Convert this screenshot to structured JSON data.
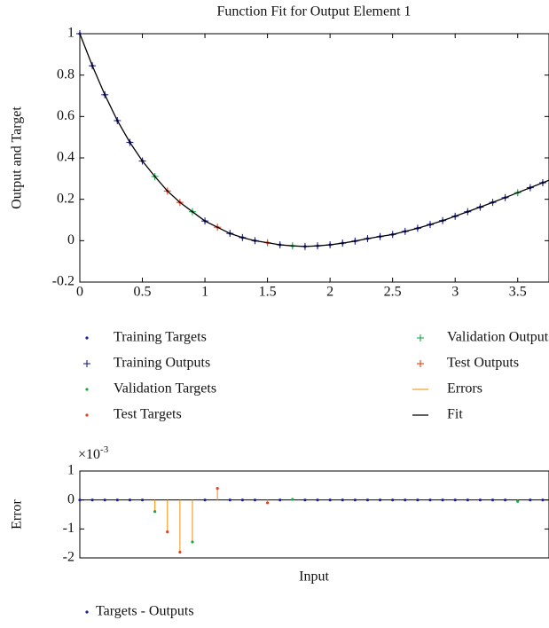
{
  "chart_data": [
    {
      "type": "scatter-fit",
      "title": "Function Fit for Output Element 1",
      "ylabel": "Output and Target",
      "xlim": [
        0,
        3.75
      ],
      "ylim": [
        -0.2,
        1
      ],
      "xticks": [
        0,
        0.5,
        1,
        1.5,
        2,
        2.5,
        3,
        3.5
      ],
      "yticks": [
        -0.2,
        0,
        0.2,
        0.4,
        0.6,
        0.8,
        1
      ],
      "series": [
        {
          "name": "Training Targets",
          "color": "#1f1f8f",
          "marker": "dot",
          "x": [
            0,
            0.1,
            0.2,
            0.3,
            0.4,
            0.5,
            1.0,
            1.2,
            1.3,
            1.4,
            1.6,
            1.8,
            1.9,
            2.0,
            2.1,
            2.2,
            2.3,
            2.4,
            2.5,
            2.6,
            2.7,
            2.8,
            2.9,
            3.0,
            3.1,
            3.2,
            3.3,
            3.4,
            3.6,
            3.7
          ],
          "values": [
            1,
            0.845,
            0.705,
            0.58,
            0.475,
            0.385,
            0.095,
            0.035,
            0.015,
            0,
            -0.02,
            -0.028,
            -0.025,
            -0.02,
            -0.012,
            -0.002,
            0.01,
            0.02,
            0.03,
            0.045,
            0.06,
            0.078,
            0.097,
            0.118,
            0.14,
            0.162,
            0.185,
            0.208,
            0.256,
            0.28
          ]
        },
        {
          "name": "Training Outputs",
          "color": "#1f1f8f",
          "marker": "plus",
          "x": [
            0,
            0.1,
            0.2,
            0.3,
            0.4,
            0.5,
            1.0,
            1.2,
            1.3,
            1.4,
            1.6,
            1.8,
            1.9,
            2.0,
            2.1,
            2.2,
            2.3,
            2.4,
            2.5,
            2.6,
            2.7,
            2.8,
            2.9,
            3.0,
            3.1,
            3.2,
            3.3,
            3.4,
            3.6,
            3.7
          ],
          "values": [
            1,
            0.845,
            0.705,
            0.58,
            0.475,
            0.385,
            0.095,
            0.035,
            0.015,
            0,
            -0.02,
            -0.028,
            -0.025,
            -0.02,
            -0.012,
            -0.002,
            0.01,
            0.02,
            0.03,
            0.045,
            0.06,
            0.078,
            0.097,
            0.118,
            0.14,
            0.162,
            0.185,
            0.208,
            0.256,
            0.28
          ]
        },
        {
          "name": "Validation Targets",
          "color": "#1aa84a",
          "marker": "dot",
          "x": [
            0.6,
            0.9,
            1.7,
            3.5
          ],
          "values": [
            0.31,
            0.14,
            -0.025,
            0.232
          ]
        },
        {
          "name": "Test Targets",
          "color": "#e8401c",
          "marker": "dot",
          "x": [
            0.7,
            0.8,
            1.1,
            1.5
          ],
          "values": [
            0.24,
            0.185,
            0.065,
            -0.01
          ]
        },
        {
          "name": "Validation Outputs",
          "color": "#1aa84a",
          "marker": "plus",
          "x": [
            0.6,
            0.9,
            1.7,
            3.5
          ],
          "values": [
            0.31,
            0.14,
            -0.025,
            0.232
          ]
        },
        {
          "name": "Test Outputs",
          "color": "#e8401c",
          "marker": "plus",
          "x": [
            0.7,
            0.8,
            1.1,
            1.5
          ],
          "values": [
            0.24,
            0.185,
            0.065,
            -0.01
          ]
        },
        {
          "name": "Errors",
          "color": "#f5a030",
          "marker": "line"
        },
        {
          "name": "Fit",
          "color": "#000000",
          "marker": "line",
          "x": [
            0,
            0.1,
            0.2,
            0.3,
            0.4,
            0.5,
            0.6,
            0.7,
            0.8,
            0.9,
            1.0,
            1.1,
            1.2,
            1.3,
            1.4,
            1.5,
            1.6,
            1.7,
            1.8,
            1.9,
            2.0,
            2.1,
            2.2,
            2.3,
            2.4,
            2.5,
            2.6,
            2.7,
            2.8,
            2.9,
            3.0,
            3.1,
            3.2,
            3.3,
            3.4,
            3.5,
            3.6,
            3.7,
            3.75
          ],
          "values": [
            1,
            0.845,
            0.705,
            0.58,
            0.475,
            0.385,
            0.31,
            0.24,
            0.185,
            0.14,
            0.095,
            0.065,
            0.035,
            0.015,
            0,
            -0.01,
            -0.02,
            -0.025,
            -0.028,
            -0.025,
            -0.02,
            -0.012,
            -0.002,
            0.01,
            0.02,
            0.03,
            0.045,
            0.06,
            0.078,
            0.097,
            0.118,
            0.14,
            0.162,
            0.185,
            0.208,
            0.232,
            0.256,
            0.28,
            0.292
          ]
        }
      ]
    },
    {
      "type": "stem",
      "ylabel": "Error",
      "xlabel": "Input",
      "scale_base": "×10",
      "scale_exponent": "-3",
      "xlim": [
        0,
        3.75
      ],
      "ylim": [
        -2,
        1
      ],
      "yticks": [
        -2,
        -1,
        0,
        1
      ],
      "stem_color": "#f5a030",
      "x": [
        0,
        0.1,
        0.2,
        0.3,
        0.4,
        0.5,
        0.6,
        0.7,
        0.8,
        0.9,
        1.0,
        1.1,
        1.2,
        1.3,
        1.4,
        1.5,
        1.6,
        1.7,
        1.8,
        1.9,
        2.0,
        2.1,
        2.2,
        2.3,
        2.4,
        2.5,
        2.6,
        2.7,
        2.8,
        2.9,
        3.0,
        3.1,
        3.2,
        3.3,
        3.4,
        3.5,
        3.6,
        3.7
      ],
      "series": [
        {
          "name": "Targets - Outputs",
          "color": "#1f1f8f",
          "values": [
            0,
            0,
            0,
            0,
            0,
            0,
            -0.4,
            -1.1,
            -1.8,
            -1.45,
            0,
            0.4,
            0,
            0,
            0,
            -0.1,
            0,
            0.02,
            0,
            0,
            0,
            0,
            0,
            0,
            0,
            0,
            0,
            0,
            0,
            0,
            0,
            0,
            0,
            0,
            0,
            -0.05,
            0,
            0
          ]
        }
      ]
    }
  ]
}
